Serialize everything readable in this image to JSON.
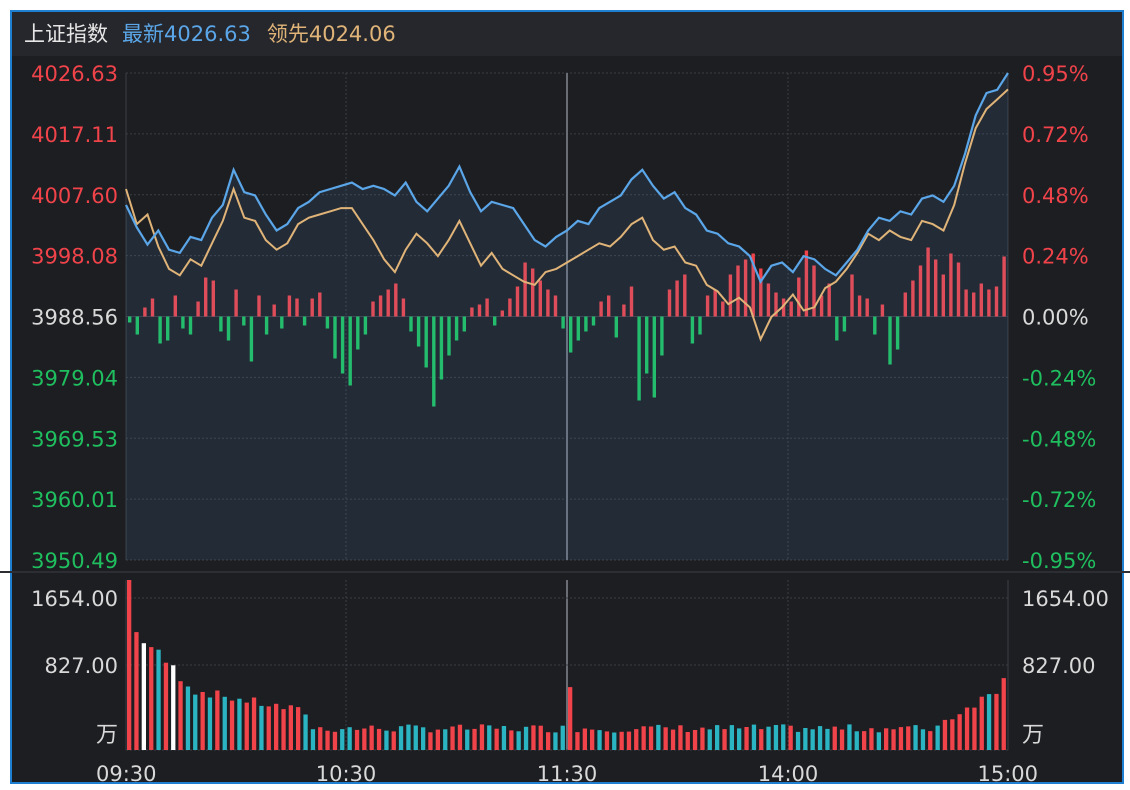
{
  "header": {
    "index_name": "上证指数",
    "latest_label": "最新",
    "latest_value": "4026.63",
    "lead_label": "领先",
    "lead_value": "4024.06"
  },
  "colors": {
    "background": "#1d1e22",
    "up": "#f0434a",
    "down": "#1fbf5f",
    "neutral": "#d9d9d9",
    "index_line": "#5aa6e8",
    "lead_line": "#e0b478",
    "volume_cyan": "#2bb5c2",
    "grid": "#3a3d44"
  },
  "chart_data": [
    {
      "type": "line",
      "title": "",
      "x_ticks": [
        "09:30",
        "10:30",
        "11:30",
        "14:00",
        "15:00"
      ],
      "y_left_ticks": [
        "4026.63",
        "4017.11",
        "4007.60",
        "3998.08",
        "3988.56",
        "3979.04",
        "3969.53",
        "3960.01",
        "3950.49"
      ],
      "y_right_ticks": [
        "0.95%",
        "0.72%",
        "0.48%",
        "0.24%",
        "0.00%",
        "-0.24%",
        "-0.48%",
        "-0.72%",
        "-0.95%"
      ],
      "ylim": [
        3950.49,
        4026.63
      ],
      "prev_close": 3988.56,
      "series": [
        {
          "name": "最新",
          "values": [
            4006.0,
            4002.5,
            3999.8,
            4002.0,
            3999.0,
            3998.5,
            4001.0,
            4000.5,
            4004.0,
            4006.0,
            4011.5,
            4008.0,
            4007.5,
            4004.5,
            4002.0,
            4003.0,
            4005.5,
            4006.5,
            4008.0,
            4008.5,
            4009.0,
            4009.5,
            4008.5,
            4009.0,
            4008.5,
            4007.5,
            4009.5,
            4006.5,
            4005.0,
            4007.0,
            4009.0,
            4012.0,
            4008.0,
            4005.0,
            4006.5,
            4006.0,
            4005.5,
            4003.0,
            4000.5,
            3999.5,
            4001.0,
            4002.0,
            4003.5,
            4003.0,
            4005.5,
            4006.5,
            4007.5,
            4010.0,
            4011.5,
            4009.0,
            4007.0,
            4008.0,
            4005.5,
            4004.5,
            4002.0,
            4001.5,
            4000.0,
            3999.5,
            3998.0,
            3994.0,
            3996.5,
            3997.0,
            3995.5,
            3998.0,
            3997.5,
            3996.0,
            3995.0,
            3997.0,
            3999.0,
            4002.0,
            4004.0,
            4003.5,
            4005.0,
            4004.5,
            4007.0,
            4007.5,
            4006.5,
            4009.0,
            4014.0,
            4020.0,
            4023.5,
            4024.0,
            4026.63
          ],
          "color": "#5aa6e8"
        },
        {
          "name": "领先",
          "values": [
            4008.5,
            4003.0,
            4004.5,
            3999.5,
            3996.0,
            3995.0,
            3997.5,
            3996.5,
            4000.0,
            4003.5,
            4008.5,
            4004.0,
            4003.5,
            4000.5,
            3999.0,
            4000.0,
            4003.0,
            4004.0,
            4004.5,
            4005.0,
            4005.5,
            4005.5,
            4003.0,
            4000.5,
            3997.5,
            3995.5,
            3999.0,
            4001.5,
            4000.0,
            3998.0,
            4000.5,
            4003.5,
            4000.0,
            3996.5,
            3998.5,
            3996.0,
            3995.0,
            3994.0,
            3993.5,
            3995.5,
            3996.0,
            3997.0,
            3998.0,
            3999.0,
            4000.0,
            3999.5,
            4001.0,
            4003.0,
            4004.0,
            4000.5,
            3999.0,
            3999.5,
            3997.0,
            3996.5,
            3993.5,
            3992.5,
            3990.5,
            3991.5,
            3990.0,
            3985.0,
            3988.5,
            3990.0,
            3992.0,
            3989.5,
            3990.0,
            3993.0,
            3994.0,
            3996.0,
            3998.5,
            4001.5,
            4000.5,
            4002.0,
            4001.0,
            4000.5,
            4003.5,
            4003.0,
            4002.0,
            4006.0,
            4012.5,
            4018.0,
            4021.0,
            4022.5,
            4024.06
          ],
          "color": "#e0b478"
        }
      ],
      "momentum_bars": [
        -2,
        -6,
        3,
        6,
        -9,
        -8,
        7,
        -4,
        -6,
        5,
        13,
        12,
        -5,
        -8,
        9,
        -3,
        -15,
        7,
        -6,
        4,
        -4,
        7,
        6,
        -3,
        6,
        8,
        -4,
        -14,
        -19,
        -23,
        -11,
        -6,
        5,
        7,
        9,
        11,
        6,
        -5,
        -10,
        -17,
        -30,
        -21,
        -13,
        -8,
        -5,
        3,
        4,
        6,
        -3,
        2,
        6,
        10,
        18,
        16,
        12,
        9,
        7,
        -4,
        -12,
        -8,
        -5,
        -3,
        5,
        7,
        -7,
        4,
        10,
        -28,
        -19,
        -27,
        -13,
        9,
        12,
        14,
        -9,
        -6,
        7,
        9,
        5,
        14,
        17,
        19,
        21,
        16,
        11,
        8,
        6,
        5,
        13,
        22,
        17,
        7,
        11,
        -8,
        -5,
        14,
        7,
        6,
        -6,
        4,
        -16,
        -11,
        8,
        12,
        17,
        23,
        19,
        14,
        21,
        18,
        9,
        8,
        11,
        9,
        10,
        20
      ]
    },
    {
      "type": "bar",
      "title": "",
      "y_ticks": [
        "1654.00",
        "827.00"
      ],
      "unit_label": "万",
      "ylim": [
        0,
        1654
      ],
      "bar_count": 120
    }
  ]
}
